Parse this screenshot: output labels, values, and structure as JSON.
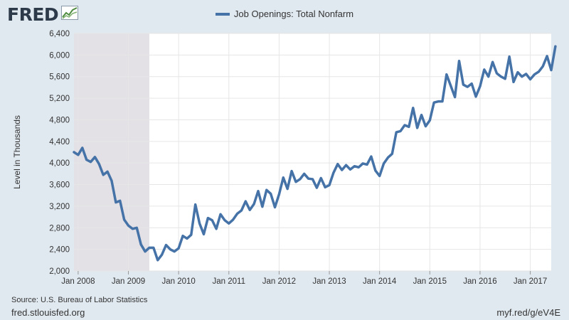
{
  "header": {
    "logo": "FRED",
    "logo_icon": "trend-chart-icon"
  },
  "footer": {
    "source": "Source: U.S. Bureau of Labor Statistics",
    "site": "fred.stlouisfed.org",
    "shortlink": "myf.red/g/eV4E"
  },
  "chart_data": {
    "type": "line",
    "title": "",
    "xlabel": "",
    "ylabel": "Level in Thousands",
    "ylim": [
      2000,
      6400
    ],
    "yticks": [
      2000,
      2400,
      2800,
      3200,
      3600,
      4000,
      4400,
      4800,
      5200,
      5600,
      6000,
      6400
    ],
    "ytick_labels": [
      "2,000",
      "2,400",
      "2,800",
      "3,200",
      "3,600",
      "4,000",
      "4,400",
      "4,800",
      "5,200",
      "5,600",
      "6,000",
      "6,400"
    ],
    "xlim": [
      "2007-12",
      "2017-06"
    ],
    "xticks": [
      "2008-01",
      "2009-01",
      "2010-01",
      "2011-01",
      "2012-01",
      "2013-01",
      "2014-01",
      "2015-01",
      "2016-01",
      "2017-01"
    ],
    "xtick_labels": [
      "Jan 2008",
      "Jan 2009",
      "Jan 2010",
      "Jan 2011",
      "Jan 2012",
      "Jan 2013",
      "Jan 2014",
      "Jan 2015",
      "Jan 2016",
      "Jan 2017"
    ],
    "grid": true,
    "legend_position": "top-center",
    "recession": {
      "start": "2007-12",
      "end": "2009-06",
      "color": "#e3e1e6"
    },
    "series": [
      {
        "name": "Job Openings: Total Nonfarm",
        "color": "#4572a7",
        "start": "2007-12",
        "frequency": "monthly",
        "values": [
          4200,
          4150,
          4280,
          4060,
          4020,
          4110,
          3980,
          3780,
          3840,
          3670,
          3270,
          3300,
          2950,
          2840,
          2780,
          2800,
          2490,
          2360,
          2430,
          2430,
          2200,
          2300,
          2480,
          2400,
          2360,
          2420,
          2650,
          2600,
          2670,
          3230,
          2880,
          2680,
          2980,
          2940,
          2780,
          3050,
          2940,
          2880,
          2950,
          3060,
          3120,
          3290,
          3130,
          3240,
          3480,
          3190,
          3500,
          3430,
          3180,
          3420,
          3730,
          3520,
          3850,
          3650,
          3700,
          3800,
          3710,
          3700,
          3540,
          3720,
          3550,
          3590,
          3820,
          3980,
          3870,
          3960,
          3880,
          3940,
          3920,
          3990,
          3970,
          4120,
          3860,
          3760,
          3990,
          4100,
          4170,
          4570,
          4590,
          4700,
          4670,
          5020,
          4650,
          4890,
          4680,
          4790,
          5120,
          5140,
          5140,
          5640,
          5430,
          5220,
          5890,
          5450,
          5410,
          5470,
          5230,
          5420,
          5730,
          5600,
          5870,
          5660,
          5600,
          5560,
          5970,
          5500,
          5680,
          5600,
          5650,
          5550,
          5640,
          5690,
          5790,
          5980,
          5720,
          6160
        ]
      }
    ]
  }
}
